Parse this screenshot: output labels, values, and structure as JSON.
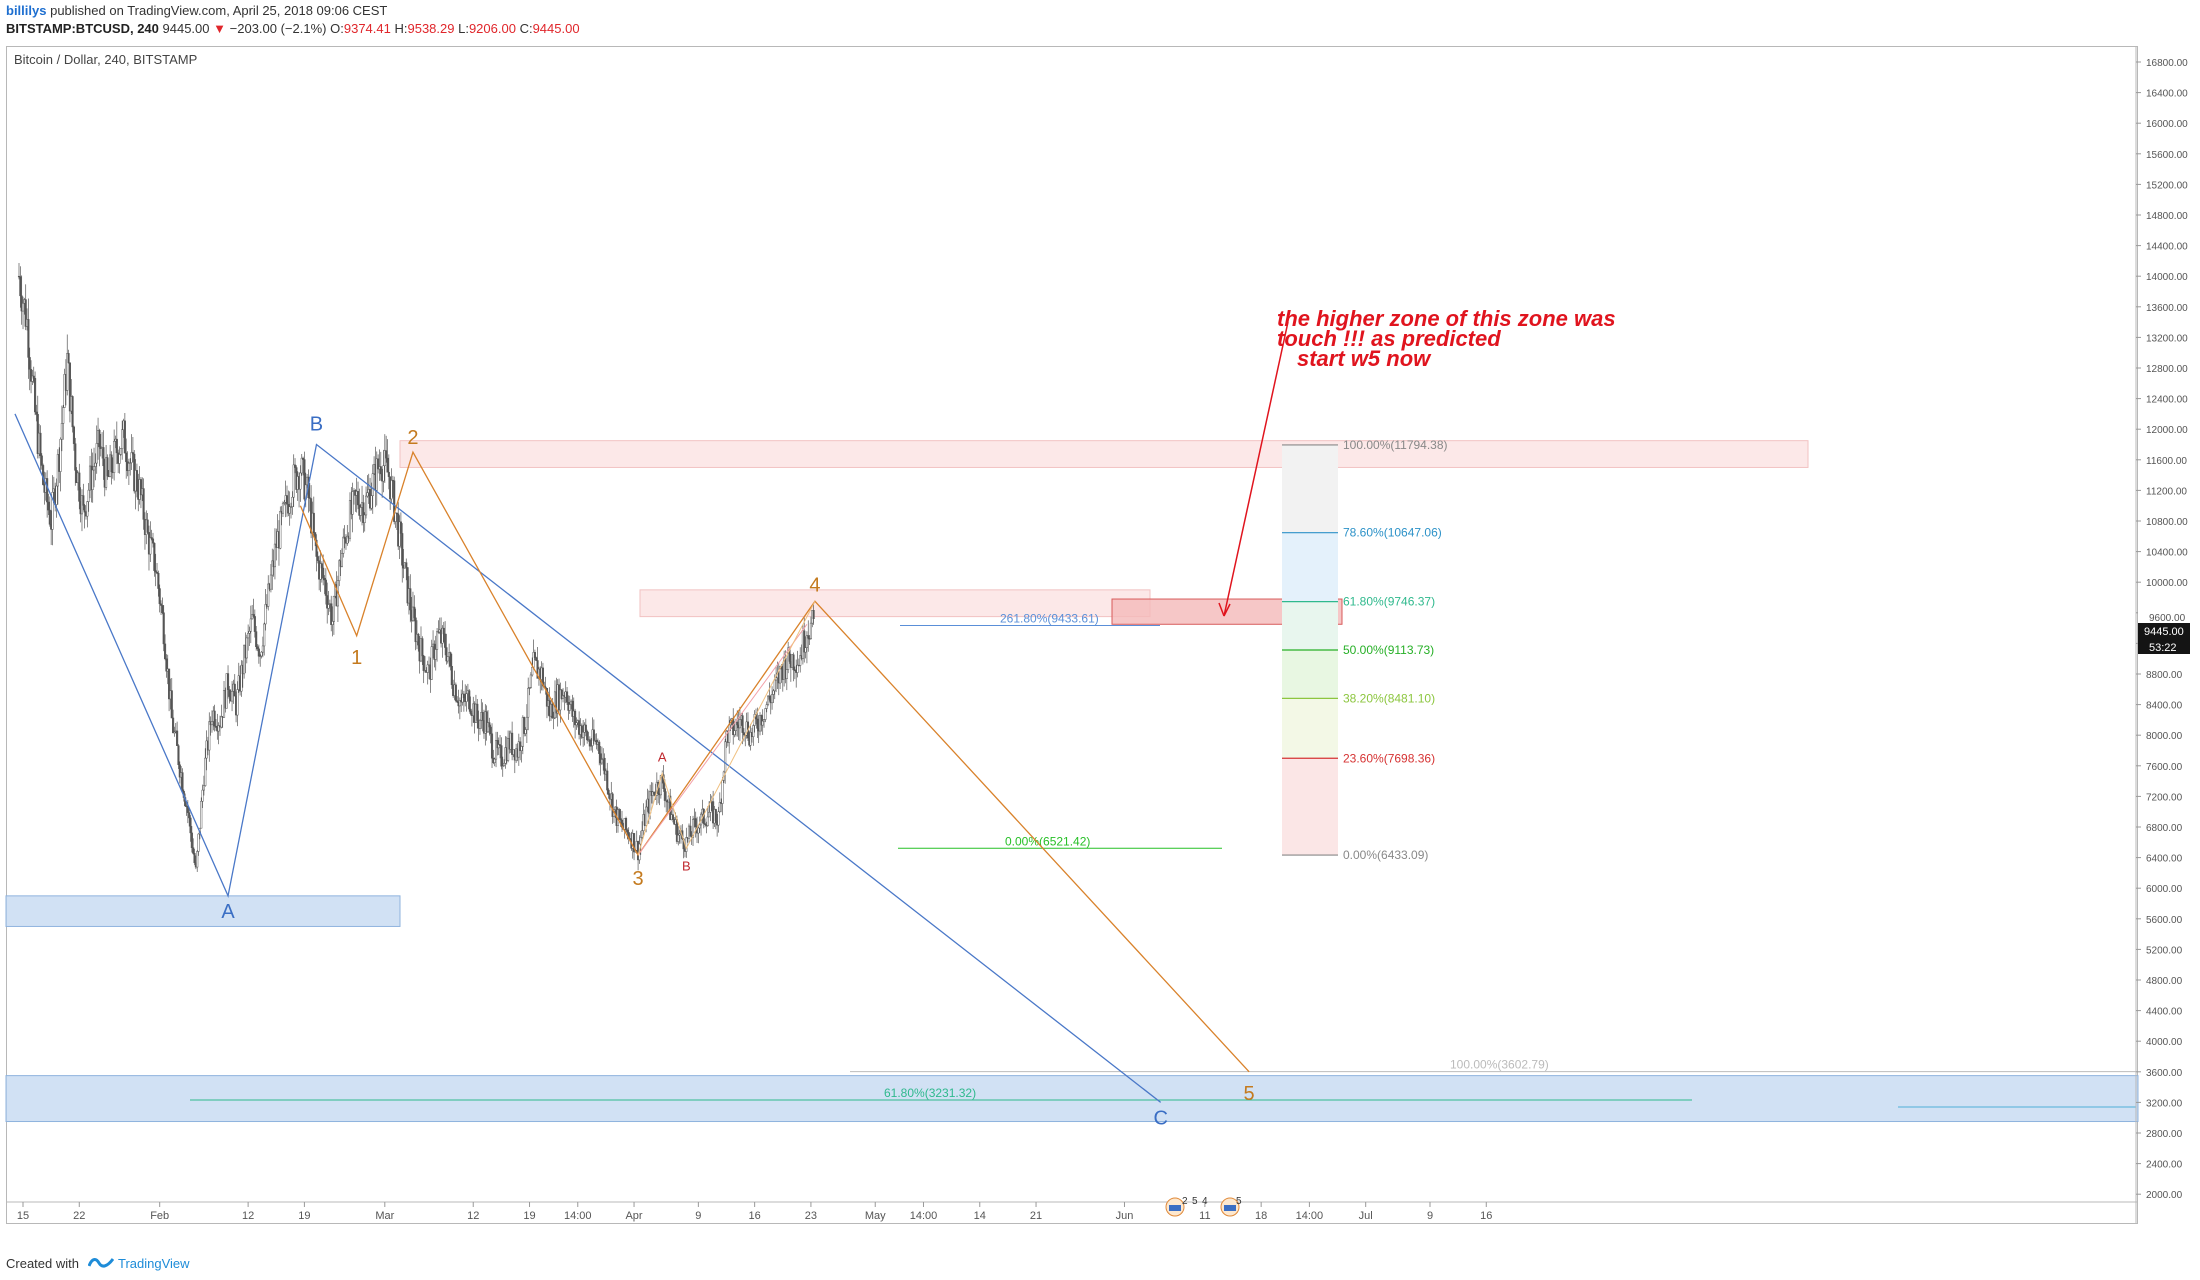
{
  "header": {
    "user": "billilys",
    "published": "published on TradingView.com, April 25, 2018 09:06 CEST",
    "symbol": "BITSTAMP:BTCUSD, 240",
    "price": "9445.00",
    "change": "−203.00 (−2.1%)",
    "ohlc_o_label": "O:",
    "ohlc_o": "9374.41",
    "ohlc_h_label": "H:",
    "ohlc_h": "9538.29",
    "ohlc_l_label": "L:",
    "ohlc_l": "9206.00",
    "ohlc_c_label": "C:",
    "ohlc_c": "9445.00"
  },
  "chart_title": "Bitcoin / Dollar, 240, BITSTAMP",
  "annotation": {
    "line1": "the higher zone of this zone was",
    "line2": "touch !!! as predicted",
    "line3": "start w5 now"
  },
  "price_tags": {
    "last": "9445.00",
    "countdown": "53:22",
    "hidden_tick": "9600.00"
  },
  "footer": {
    "made": "Created with",
    "brand": "TradingView"
  },
  "colors": {
    "wave_blue": "#4a78c8",
    "wave_orange": "#d9822b",
    "annotation_red": "#e0141e",
    "zone_blue": "#c9dcf2",
    "zone_pink": "#f9dada"
  },
  "chart_data": {
    "type": "candlestick",
    "title": "Bitcoin / Dollar, 240, BITSTAMP",
    "ylim": [
      1800,
      17000
    ],
    "y_ticks": [
      "16800.00",
      "16400.00",
      "16000.00",
      "15600.00",
      "15200.00",
      "14800.00",
      "14400.00",
      "14000.00",
      "13600.00",
      "13200.00",
      "12800.00",
      "12400.00",
      "12000.00",
      "11600.00",
      "11200.00",
      "10800.00",
      "10400.00",
      "10000.00",
      "9600.00",
      "9200.00",
      "8800.00",
      "8400.00",
      "8000.00",
      "7600.00",
      "7200.00",
      "6800.00",
      "6400.00",
      "6000.00",
      "5600.00",
      "5200.00",
      "4800.00",
      "4400.00",
      "4000.00",
      "3600.00",
      "3200.00",
      "2800.00",
      "2400.00",
      "2000.00"
    ],
    "x_ticks": [
      {
        "label": "15",
        "day": 0
      },
      {
        "label": "22",
        "day": 7
      },
      {
        "label": "Feb",
        "day": 17
      },
      {
        "label": "12",
        "day": 28
      },
      {
        "label": "19",
        "day": 35
      },
      {
        "label": "Mar",
        "day": 45
      },
      {
        "label": "12",
        "day": 56
      },
      {
        "label": "19",
        "day": 63
      },
      {
        "label": "14:00",
        "day": 69
      },
      {
        "label": "Apr",
        "day": 76
      },
      {
        "label": "9",
        "day": 84
      },
      {
        "label": "16",
        "day": 91
      },
      {
        "label": "23",
        "day": 98
      },
      {
        "label": "May",
        "day": 106
      },
      {
        "label": "14:00",
        "day": 112
      },
      {
        "label": "14",
        "day": 119
      },
      {
        "label": "21",
        "day": 126
      },
      {
        "label": "Jun",
        "day": 137
      },
      {
        "label": "11",
        "day": 147
      },
      {
        "label": "18",
        "day": 154
      },
      {
        "label": "14:00",
        "day": 160
      },
      {
        "label": "Jul",
        "day": 167
      },
      {
        "label": "9",
        "day": 175
      },
      {
        "label": "16",
        "day": 182
      }
    ],
    "price_path": [
      [
        0,
        14000
      ],
      [
        1,
        13400
      ],
      [
        2,
        12200
      ],
      [
        3,
        11300
      ],
      [
        4,
        10800
      ],
      [
        5,
        11700
      ],
      [
        6,
        12900
      ],
      [
        7,
        11600
      ],
      [
        8,
        10900
      ],
      [
        9,
        11400
      ],
      [
        10,
        11800
      ],
      [
        11,
        11300
      ],
      [
        12,
        11700
      ],
      [
        13,
        11900
      ],
      [
        14,
        11500
      ],
      [
        15,
        11200
      ],
      [
        16,
        10600
      ],
      [
        17,
        10200
      ],
      [
        18,
        9400
      ],
      [
        19,
        8200
      ],
      [
        20,
        7600
      ],
      [
        21,
        7000
      ],
      [
        22,
        6200
      ],
      [
        23,
        7500
      ],
      [
        24,
        8300
      ],
      [
        25,
        8200
      ],
      [
        26,
        8700
      ],
      [
        27,
        8400
      ],
      [
        28,
        9000
      ],
      [
        29,
        9500
      ],
      [
        30,
        9100
      ],
      [
        31,
        9800
      ],
      [
        32,
        10500
      ],
      [
        33,
        10900
      ],
      [
        34,
        11300
      ],
      [
        35,
        11500
      ],
      [
        36,
        11100
      ],
      [
        37,
        10300
      ],
      [
        38,
        10000
      ],
      [
        39,
        9500
      ],
      [
        40,
        10300
      ],
      [
        41,
        10800
      ],
      [
        42,
        11100
      ],
      [
        43,
        11000
      ],
      [
        44,
        11300
      ],
      [
        45,
        11600
      ],
      [
        46,
        11400
      ],
      [
        47,
        10800
      ],
      [
        48,
        10100
      ],
      [
        49,
        9500
      ],
      [
        50,
        9100
      ],
      [
        51,
        8800
      ],
      [
        52,
        9300
      ],
      [
        53,
        9200
      ],
      [
        54,
        8700
      ],
      [
        55,
        8400
      ],
      [
        56,
        8500
      ],
      [
        57,
        8200
      ],
      [
        58,
        8200
      ],
      [
        59,
        7800
      ],
      [
        60,
        7700
      ],
      [
        61,
        7900
      ],
      [
        62,
        7800
      ],
      [
        63,
        8200
      ],
      [
        64,
        8900
      ],
      [
        65,
        8800
      ],
      [
        66,
        8300
      ],
      [
        67,
        8500
      ],
      [
        68,
        8600
      ],
      [
        69,
        8200
      ],
      [
        70,
        8100
      ],
      [
        71,
        7900
      ],
      [
        72,
        7900
      ],
      [
        73,
        7500
      ],
      [
        74,
        7000
      ],
      [
        75,
        6800
      ],
      [
        76,
        6700
      ],
      [
        77,
        6500
      ],
      [
        78,
        7000
      ],
      [
        79,
        7300
      ],
      [
        80,
        7400
      ],
      [
        81,
        7000
      ],
      [
        82,
        6700
      ],
      [
        83,
        6600
      ],
      [
        84,
        6800
      ],
      [
        85,
        6900
      ],
      [
        86,
        7000
      ],
      [
        87,
        6900
      ],
      [
        88,
        8000
      ],
      [
        89,
        8100
      ],
      [
        90,
        8200
      ],
      [
        91,
        8000
      ],
      [
        92,
        8200
      ],
      [
        93,
        8400
      ],
      [
        94,
        8600
      ],
      [
        95,
        8900
      ],
      [
        96,
        9000
      ],
      [
        97,
        9000
      ],
      [
        98,
        9400
      ],
      [
        99,
        9445
      ]
    ],
    "elliott_primary": [
      {
        "label": "A",
        "day": 26,
        "price": 5900
      },
      {
        "label": "B",
        "day": 37,
        "price": 11800
      },
      {
        "label": "C",
        "day": 142,
        "price": 3200
      }
    ],
    "elliott_intermediate": [
      {
        "label": "1",
        "day": 42,
        "price": 9300
      },
      {
        "label": "2",
        "day": 49,
        "price": 11700
      },
      {
        "label": "3",
        "day": 77,
        "price": 6433
      },
      {
        "label": "4",
        "day": 99,
        "price": 9750
      },
      {
        "label": "5",
        "day": 153,
        "price": 3600
      }
    ],
    "elliott_minor": [
      {
        "label": "A",
        "day": 80,
        "price": 7500
      },
      {
        "label": "B",
        "day": 83,
        "price": 6520
      }
    ],
    "fibonacci_levels": [
      {
        "label": "100.00%(11794.38)",
        "price": 11794.38,
        "color": "#888888"
      },
      {
        "label": "78.60%(10647.06)",
        "price": 10647.06,
        "color": "#2d92c8"
      },
      {
        "label": "61.80%(9746.37)",
        "price": 9746.37,
        "color": "#2fb98d"
      },
      {
        "label": "50.00%(9113.73)",
        "price": 9113.73,
        "color": "#27b027"
      },
      {
        "label": "38.20%(8481.10)",
        "price": 8481.1,
        "color": "#8cc63f"
      },
      {
        "label": "23.60%(7698.36)",
        "price": 7698.36,
        "color": "#d63333"
      },
      {
        "label": "0.00%(6433.09)",
        "price": 6433.09,
        "color": "#888888"
      }
    ],
    "extension_levels": [
      {
        "label": "261.80%(9433.61)",
        "price": 9433.61,
        "color": "#5a8fd8"
      },
      {
        "label": "0.00%(6521.42)",
        "price": 6521.42,
        "color": "#27c027"
      },
      {
        "label": "100.00%(3602.79)",
        "price": 3602.79,
        "color": "#bbbbbb"
      },
      {
        "label": "61.80%(3231.32)",
        "price": 3231.32,
        "color": "#2fb98d"
      }
    ],
    "zones": [
      {
        "kind": "support",
        "from": 5500,
        "to": 5900
      },
      {
        "kind": "resistance",
        "from": 11500,
        "to": 11850
      },
      {
        "kind": "resistance",
        "from": 9550,
        "to": 9900
      },
      {
        "kind": "target",
        "from": 9450,
        "to": 9780
      },
      {
        "kind": "support",
        "from": 2950,
        "to": 3550
      }
    ],
    "event_markers": [
      "2",
      "5",
      "4",
      "5"
    ]
  }
}
